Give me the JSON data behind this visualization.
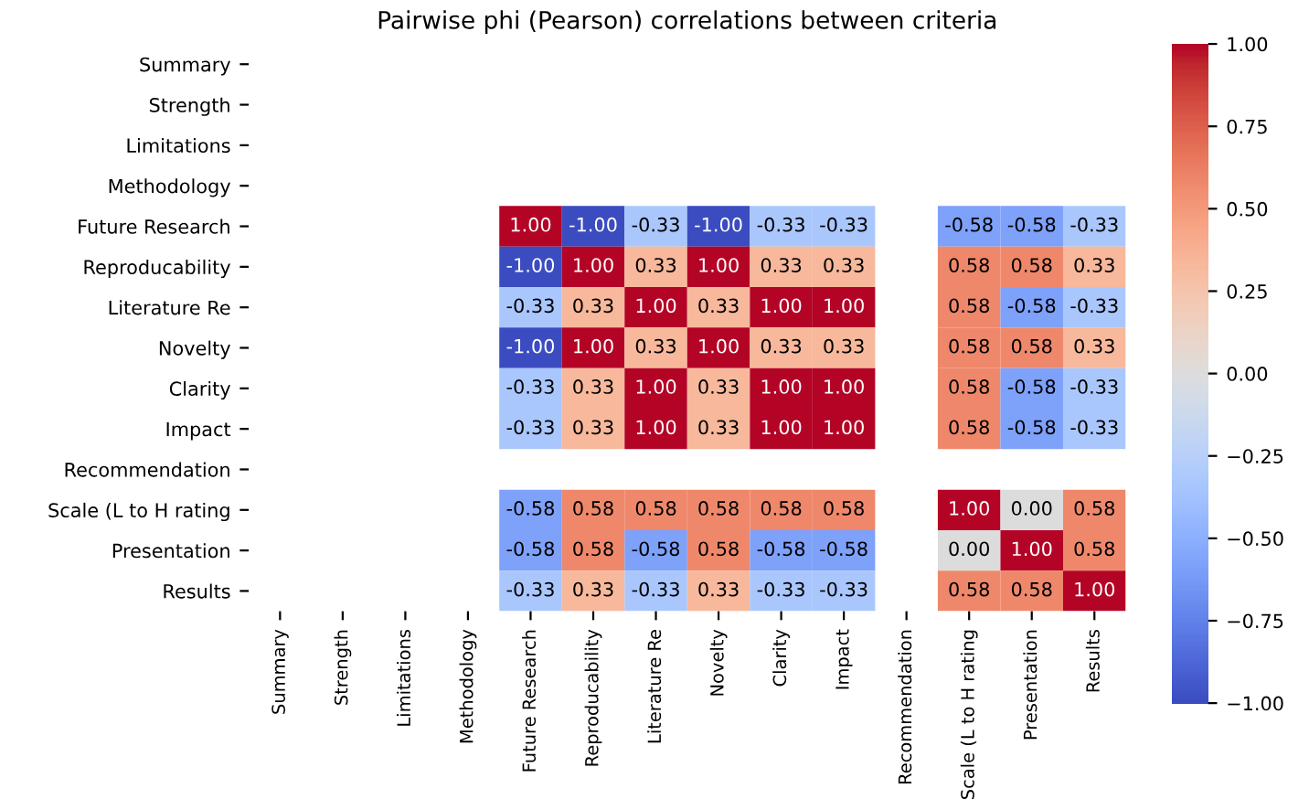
{
  "chart_data": {
    "type": "heatmap",
    "title": "Pairwise phi (Pearson) correlations between criteria",
    "categories": [
      "Summary",
      "Strength",
      "Limitations",
      "Methodology",
      "Future Research",
      "Reproducability",
      "Literature Re",
      "Novelty",
      "Clarity",
      "Impact",
      "Recommendation",
      "Scale (L to H rating",
      "Presentation",
      "Results"
    ],
    "y_categories": [
      "Summary",
      "Strength",
      "Limitations",
      "Methodology",
      "Future Research",
      "Reproducability",
      "Literature Re",
      "Novelty",
      "Clarity",
      "Impact",
      "Recommendation",
      "Scale (L to H rating",
      "Presentation",
      "Results"
    ],
    "cells": [
      [
        null,
        null,
        null,
        null,
        null,
        null,
        null,
        null,
        null,
        null,
        null,
        null,
        null,
        null
      ],
      [
        null,
        null,
        null,
        null,
        null,
        null,
        null,
        null,
        null,
        null,
        null,
        null,
        null,
        null
      ],
      [
        null,
        null,
        null,
        null,
        null,
        null,
        null,
        null,
        null,
        null,
        null,
        null,
        null,
        null
      ],
      [
        null,
        null,
        null,
        null,
        null,
        null,
        null,
        null,
        null,
        null,
        null,
        null,
        null,
        null
      ],
      [
        null,
        null,
        null,
        null,
        1.0,
        -1.0,
        -0.33,
        -1.0,
        -0.33,
        -0.33,
        null,
        -0.58,
        -0.58,
        -0.33
      ],
      [
        null,
        null,
        null,
        null,
        -1.0,
        1.0,
        0.33,
        1.0,
        0.33,
        0.33,
        null,
        0.58,
        0.58,
        0.33
      ],
      [
        null,
        null,
        null,
        null,
        -0.33,
        0.33,
        1.0,
        0.33,
        1.0,
        1.0,
        null,
        0.58,
        -0.58,
        -0.33
      ],
      [
        null,
        null,
        null,
        null,
        -1.0,
        1.0,
        0.33,
        1.0,
        0.33,
        0.33,
        null,
        0.58,
        0.58,
        0.33
      ],
      [
        null,
        null,
        null,
        null,
        -0.33,
        0.33,
        1.0,
        0.33,
        1.0,
        1.0,
        null,
        0.58,
        -0.58,
        -0.33
      ],
      [
        null,
        null,
        null,
        null,
        -0.33,
        0.33,
        1.0,
        0.33,
        1.0,
        1.0,
        null,
        0.58,
        -0.58,
        -0.33
      ],
      [
        null,
        null,
        null,
        null,
        null,
        null,
        null,
        null,
        null,
        null,
        null,
        null,
        null,
        null
      ],
      [
        null,
        null,
        null,
        null,
        -0.58,
        0.58,
        0.58,
        0.58,
        0.58,
        0.58,
        null,
        1.0,
        0.0,
        0.58
      ],
      [
        null,
        null,
        null,
        null,
        -0.58,
        0.58,
        -0.58,
        0.58,
        -0.58,
        -0.58,
        null,
        0.0,
        1.0,
        0.58
      ],
      [
        null,
        null,
        null,
        null,
        -0.33,
        0.33,
        -0.33,
        0.33,
        -0.33,
        -0.33,
        null,
        0.58,
        0.58,
        1.0
      ]
    ],
    "cell_labels": [
      [
        null,
        null,
        null,
        null,
        null,
        null,
        null,
        null,
        null,
        null,
        null,
        null,
        null,
        null
      ],
      [
        null,
        null,
        null,
        null,
        null,
        null,
        null,
        null,
        null,
        null,
        null,
        null,
        null,
        null
      ],
      [
        null,
        null,
        null,
        null,
        null,
        null,
        null,
        null,
        null,
        null,
        null,
        null,
        null,
        null
      ],
      [
        null,
        null,
        null,
        null,
        null,
        null,
        null,
        null,
        null,
        null,
        null,
        null,
        null,
        null
      ],
      [
        null,
        null,
        null,
        null,
        "1.00",
        "-1.00",
        "-0.33",
        "-1.00",
        "-0.33",
        "-0.33",
        null,
        "-0.58",
        "-0.58",
        "-0.33"
      ],
      [
        null,
        null,
        null,
        null,
        "-1.00",
        "1.00",
        "0.33",
        "1.00",
        "0.33",
        "0.33",
        null,
        "0.58",
        "0.58",
        "0.33"
      ],
      [
        null,
        null,
        null,
        null,
        "-0.33",
        "0.33",
        "1.00",
        "0.33",
        "1.00",
        "1.00",
        null,
        "0.58",
        "-0.58",
        "-0.33"
      ],
      [
        null,
        null,
        null,
        null,
        "-1.00",
        "1.00",
        "0.33",
        "1.00",
        "0.33",
        "0.33",
        null,
        "0.58",
        "0.58",
        "0.33"
      ],
      [
        null,
        null,
        null,
        null,
        "-0.33",
        "0.33",
        "1.00",
        "0.33",
        "1.00",
        "1.00",
        null,
        "0.58",
        "-0.58",
        "-0.33"
      ],
      [
        null,
        null,
        null,
        null,
        "-0.33",
        "0.33",
        "1.00",
        "0.33",
        "1.00",
        "1.00",
        null,
        "0.58",
        "-0.58",
        "-0.33"
      ],
      [
        null,
        null,
        null,
        null,
        null,
        null,
        null,
        null,
        null,
        null,
        null,
        null,
        null,
        null
      ],
      [
        null,
        null,
        null,
        null,
        "-0.58",
        "0.58",
        "0.58",
        "0.58",
        "0.58",
        "0.58",
        null,
        "1.00",
        "0.00",
        "0.58"
      ],
      [
        null,
        null,
        null,
        null,
        "-0.58",
        "0.58",
        "-0.58",
        "0.58",
        "-0.58",
        "-0.58",
        null,
        "0.00",
        "1.00",
        "0.58"
      ],
      [
        null,
        null,
        null,
        null,
        "-0.33",
        "0.33",
        "-0.33",
        "0.33",
        "-0.33",
        "-0.33",
        null,
        "0.58",
        "0.58",
        "1.00"
      ]
    ],
    "clim": [
      -1.0,
      1.0
    ],
    "cticks": [
      {
        "value": -1.0,
        "label": "−1.00"
      },
      {
        "value": -0.75,
        "label": "−0.75"
      },
      {
        "value": -0.5,
        "label": "−0.50"
      },
      {
        "value": -0.25,
        "label": "−0.25"
      },
      {
        "value": 0.0,
        "label": "0.00"
      },
      {
        "value": 0.25,
        "label": "0.25"
      },
      {
        "value": 0.5,
        "label": "0.50"
      },
      {
        "value": 0.75,
        "label": "0.75"
      },
      {
        "value": 1.0,
        "label": "1.00"
      }
    ]
  }
}
